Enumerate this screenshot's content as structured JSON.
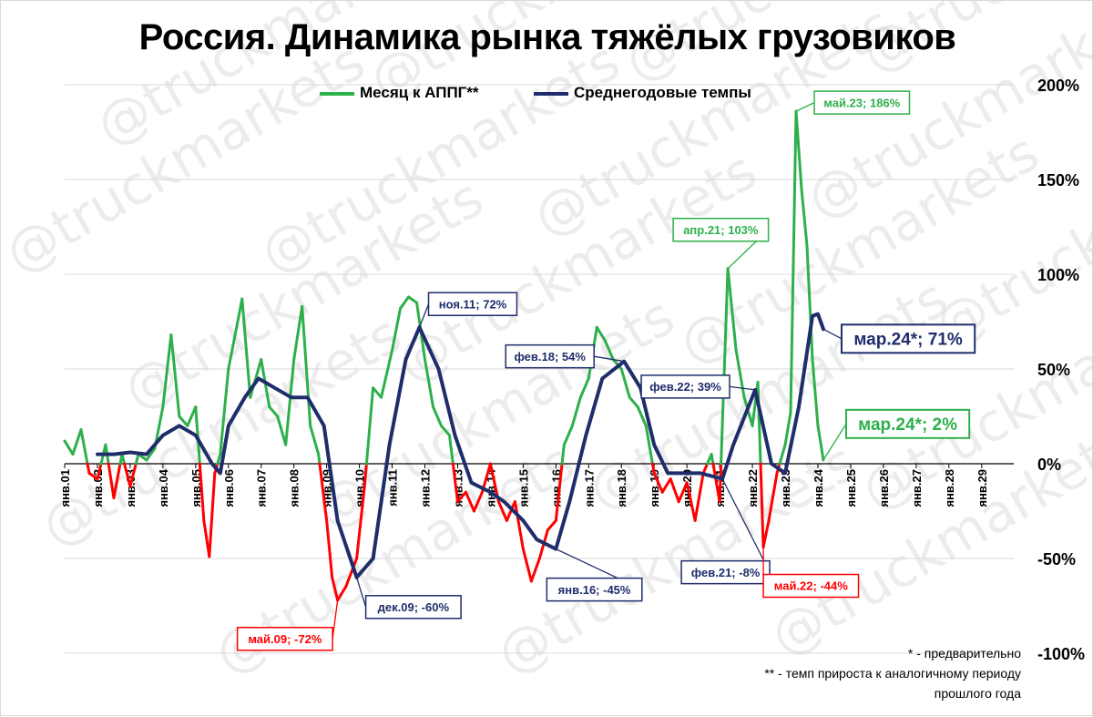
{
  "title": "Россия. Динамика рынка тяжёлых грузовиков",
  "footnotes": {
    "preliminary": "* - предварительно",
    "yoy_line1": "** - темп прироста к аналогичному периоду",
    "yoy_line2": "прошлого года"
  },
  "colors": {
    "green": "#2db04b",
    "red": "#ff0000",
    "navy": "#1f2d6b",
    "grid": "#d9d9d9",
    "watermark": "#c8c8c8"
  },
  "watermark_text": "@truckmarkets",
  "chart_data": {
    "type": "line",
    "ylim": [
      -1.0,
      2.0
    ],
    "ytick_values": [
      -1.0,
      -0.5,
      0,
      0.5,
      1.0,
      1.5,
      2.0
    ],
    "ytick_labels": [
      "-100%",
      "-50%",
      "0%",
      "50%",
      "100%",
      "150%",
      "200%"
    ],
    "x_start_year": 2001,
    "x_tick_labels": [
      "янв.01",
      "янв.02",
      "янв.03",
      "янв.04",
      "янв.05",
      "янв.06",
      "янв.07",
      "янв.08",
      "янв.09",
      "янв.10",
      "янв.11",
      "янв.12",
      "янв.13",
      "янв.14",
      "янв.15",
      "янв.16",
      "янв.17",
      "янв.18",
      "янв.19",
      "янв.20",
      "янв.21",
      "янв.22",
      "янв.23",
      "янв.24",
      "янв.25",
      "янв.26",
      "янв.27",
      "янв.28",
      "янв.29"
    ],
    "series": [
      {
        "name": "Месяц к АППГ**",
        "color_positive": "#2db04b",
        "color_negative": "#ff0000",
        "points": [
          [
            "2001-01",
            0.12
          ],
          [
            "2001-04",
            0.05
          ],
          [
            "2001-07",
            0.18
          ],
          [
            "2001-10",
            -0.05
          ],
          [
            "2002-01",
            -0.08
          ],
          [
            "2002-04",
            0.1
          ],
          [
            "2002-07",
            -0.18
          ],
          [
            "2002-10",
            0.05
          ],
          [
            "2003-01",
            -0.12
          ],
          [
            "2003-04",
            0.05
          ],
          [
            "2003-07",
            0.02
          ],
          [
            "2003-10",
            0.08
          ],
          [
            "2004-01",
            0.3
          ],
          [
            "2004-04",
            0.68
          ],
          [
            "2004-07",
            0.25
          ],
          [
            "2004-10",
            0.2
          ],
          [
            "2005-01",
            0.3
          ],
          [
            "2005-04",
            -0.3
          ],
          [
            "2005-06",
            -0.49
          ],
          [
            "2005-08",
            -0.05
          ],
          [
            "2005-10",
            0.05
          ],
          [
            "2006-01",
            0.5
          ],
          [
            "2006-04",
            0.72
          ],
          [
            "2006-06",
            0.87
          ],
          [
            "2006-09",
            0.35
          ],
          [
            "2007-01",
            0.55
          ],
          [
            "2007-04",
            0.3
          ],
          [
            "2007-07",
            0.25
          ],
          [
            "2007-10",
            0.1
          ],
          [
            "2008-01",
            0.55
          ],
          [
            "2008-04",
            0.83
          ],
          [
            "2008-07",
            0.2
          ],
          [
            "2008-10",
            0.05
          ],
          [
            "2009-01",
            -0.3
          ],
          [
            "2009-03",
            -0.6
          ],
          [
            "2009-05",
            -0.72
          ],
          [
            "2009-08",
            -0.65
          ],
          [
            "2009-12",
            -0.5
          ],
          [
            "2010-03",
            -0.1
          ],
          [
            "2010-06",
            0.4
          ],
          [
            "2010-09",
            0.35
          ],
          [
            "2011-01",
            0.6
          ],
          [
            "2011-04",
            0.82
          ],
          [
            "2011-07",
            0.88
          ],
          [
            "2011-10",
            0.85
          ],
          [
            "2012-01",
            0.55
          ],
          [
            "2012-04",
            0.3
          ],
          [
            "2012-07",
            0.2
          ],
          [
            "2012-10",
            0.15
          ],
          [
            "2013-01",
            -0.2
          ],
          [
            "2013-04",
            -0.15
          ],
          [
            "2013-07",
            -0.25
          ],
          [
            "2013-10",
            -0.15
          ],
          [
            "2014-01",
            0.0
          ],
          [
            "2014-04",
            -0.2
          ],
          [
            "2014-07",
            -0.3
          ],
          [
            "2014-10",
            -0.2
          ],
          [
            "2015-01",
            -0.45
          ],
          [
            "2015-04",
            -0.62
          ],
          [
            "2015-07",
            -0.5
          ],
          [
            "2015-10",
            -0.35
          ],
          [
            "2016-01",
            -0.3
          ],
          [
            "2016-04",
            0.1
          ],
          [
            "2016-07",
            0.2
          ],
          [
            "2016-10",
            0.35
          ],
          [
            "2017-01",
            0.45
          ],
          [
            "2017-04",
            0.72
          ],
          [
            "2017-07",
            0.65
          ],
          [
            "2017-10",
            0.55
          ],
          [
            "2018-01",
            0.5
          ],
          [
            "2018-04",
            0.35
          ],
          [
            "2018-07",
            0.3
          ],
          [
            "2018-10",
            0.2
          ],
          [
            "2019-01",
            -0.05
          ],
          [
            "2019-04",
            -0.15
          ],
          [
            "2019-07",
            -0.08
          ],
          [
            "2019-10",
            -0.2
          ],
          [
            "2020-01",
            -0.1
          ],
          [
            "2020-04",
            -0.3
          ],
          [
            "2020-07",
            -0.05
          ],
          [
            "2020-10",
            0.05
          ],
          [
            "2021-01",
            -0.2
          ],
          [
            "2021-04",
            1.03
          ],
          [
            "2021-07",
            0.6
          ],
          [
            "2021-10",
            0.35
          ],
          [
            "2022-01",
            0.2
          ],
          [
            "2022-03",
            0.43
          ],
          [
            "2022-05",
            -0.44
          ],
          [
            "2022-07",
            -0.3
          ],
          [
            "2022-10",
            -0.05
          ],
          [
            "2023-01",
            0.1
          ],
          [
            "2023-03",
            0.27
          ],
          [
            "2023-05",
            1.86
          ],
          [
            "2023-07",
            1.45
          ],
          [
            "2023-09",
            1.15
          ],
          [
            "2023-11",
            0.55
          ],
          [
            "2024-01",
            0.2
          ],
          [
            "2024-03",
            0.02
          ]
        ]
      },
      {
        "name": "Среднегодовые темпы",
        "color": "#1f2d6b",
        "points": [
          [
            "2002-01",
            0.05
          ],
          [
            "2002-07",
            0.05
          ],
          [
            "2003-01",
            0.06
          ],
          [
            "2003-07",
            0.05
          ],
          [
            "2004-01",
            0.15
          ],
          [
            "2004-07",
            0.2
          ],
          [
            "2005-01",
            0.15
          ],
          [
            "2005-07",
            0.0
          ],
          [
            "2005-10",
            -0.05
          ],
          [
            "2006-01",
            0.2
          ],
          [
            "2006-07",
            0.35
          ],
          [
            "2006-12",
            0.45
          ],
          [
            "2007-06",
            0.4
          ],
          [
            "2007-12",
            0.35
          ],
          [
            "2008-06",
            0.35
          ],
          [
            "2008-12",
            0.2
          ],
          [
            "2009-05",
            -0.3
          ],
          [
            "2009-12",
            -0.6
          ],
          [
            "2010-06",
            -0.5
          ],
          [
            "2010-12",
            0.1
          ],
          [
            "2011-06",
            0.55
          ],
          [
            "2011-11",
            0.72
          ],
          [
            "2012-06",
            0.5
          ],
          [
            "2012-12",
            0.15
          ],
          [
            "2013-06",
            -0.1
          ],
          [
            "2014-01",
            -0.15
          ],
          [
            "2014-06",
            -0.2
          ],
          [
            "2015-01",
            -0.3
          ],
          [
            "2015-06",
            -0.4
          ],
          [
            "2016-01",
            -0.45
          ],
          [
            "2016-06",
            -0.2
          ],
          [
            "2016-12",
            0.15
          ],
          [
            "2017-06",
            0.45
          ],
          [
            "2018-02",
            0.54
          ],
          [
            "2018-08",
            0.4
          ],
          [
            "2019-01",
            0.1
          ],
          [
            "2019-06",
            -0.05
          ],
          [
            "2020-01",
            -0.05
          ],
          [
            "2020-06",
            -0.05
          ],
          [
            "2021-02",
            -0.08
          ],
          [
            "2021-06",
            0.1
          ],
          [
            "2022-02",
            0.39
          ],
          [
            "2022-08",
            0.0
          ],
          [
            "2023-01",
            -0.05
          ],
          [
            "2023-06",
            0.3
          ],
          [
            "2023-11",
            0.78
          ],
          [
            "2024-01",
            0.79
          ],
          [
            "2024-03",
            0.71
          ]
        ]
      }
    ],
    "annotations": [
      {
        "text": "май.09; -72%",
        "date": "2009-05",
        "value": -0.72,
        "color": "#ff0000"
      },
      {
        "text": "дек.09; -60%",
        "date": "2009-12",
        "value": -0.6,
        "color": "#1f2d6b"
      },
      {
        "text": "ноя.11; 72%",
        "date": "2011-11",
        "value": 0.72,
        "color": "#1f2d6b"
      },
      {
        "text": "янв.16; -45%",
        "date": "2016-01",
        "value": -0.45,
        "color": "#1f2d6b"
      },
      {
        "text": "фев.18; 54%",
        "date": "2018-02",
        "value": 0.54,
        "color": "#1f2d6b"
      },
      {
        "text": "фев.22; 39%",
        "date": "2022-02",
        "value": 0.39,
        "color": "#1f2d6b"
      },
      {
        "text": "фев.21; -8%",
        "date": "2021-02",
        "value": -0.08,
        "color": "#1f2d6b"
      },
      {
        "text": "апр.21; 103%",
        "date": "2021-04",
        "value": 1.03,
        "color": "#2db04b"
      },
      {
        "text": "май.22; -44%",
        "date": "2022-05",
        "value": -0.44,
        "color": "#ff0000"
      },
      {
        "text": "май.23; 186%",
        "date": "2023-05",
        "value": 1.86,
        "color": "#2db04b"
      },
      {
        "text": "мар.24*; 71%",
        "date": "2024-03",
        "value": 0.71,
        "color": "#1f2d6b",
        "large": true
      },
      {
        "text": "мар.24*; 2%",
        "date": "2024-03",
        "value": 0.02,
        "color": "#2db04b",
        "large": true
      }
    ]
  }
}
